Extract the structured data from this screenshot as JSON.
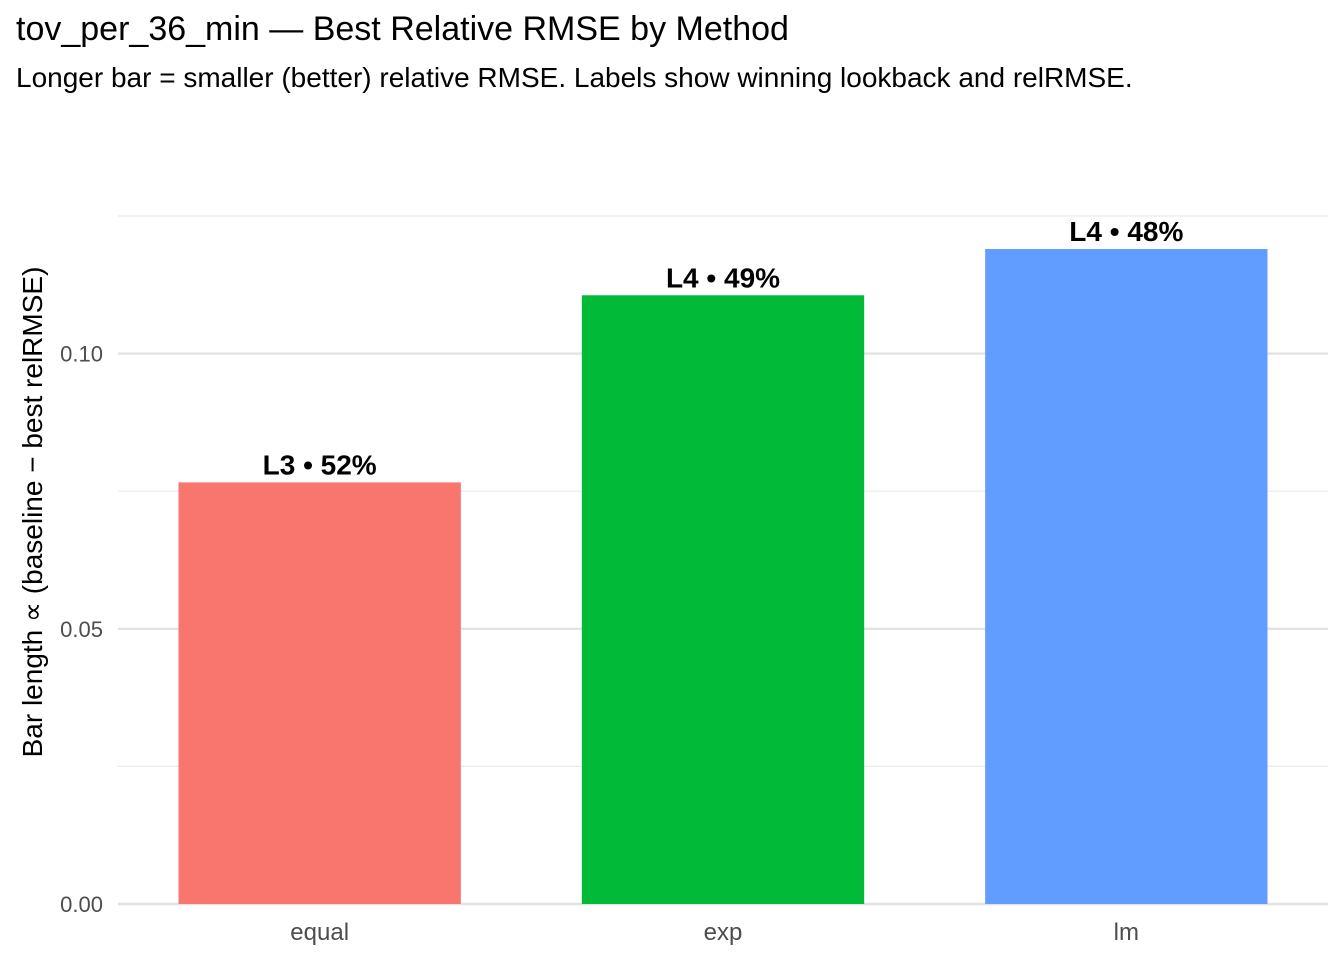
{
  "chart_data": {
    "type": "bar",
    "title": "tov_per_36_min — Best Relative RMSE by Method",
    "subtitle": "Longer bar = smaller (better) relative RMSE. Labels show winning lookback and relRMSE.",
    "xlabel": "",
    "ylabel": "Bar length ∝ (baseline − best relRMSE)",
    "categories": [
      "equal",
      "exp",
      "lm"
    ],
    "values": [
      0.0766,
      0.1106,
      0.119
    ],
    "bar_labels": [
      "L3 • 52%",
      "L4 • 49%",
      "L4 • 48%"
    ],
    "colors": [
      "#F8766D",
      "#00BA38",
      "#619CFF"
    ],
    "ylim": [
      0,
      0.125
    ],
    "yticks": [
      0.0,
      0.05,
      0.1
    ],
    "ytick_labels": [
      "0.00",
      "0.05",
      "0.10"
    ],
    "grid": true,
    "legend": "none"
  }
}
